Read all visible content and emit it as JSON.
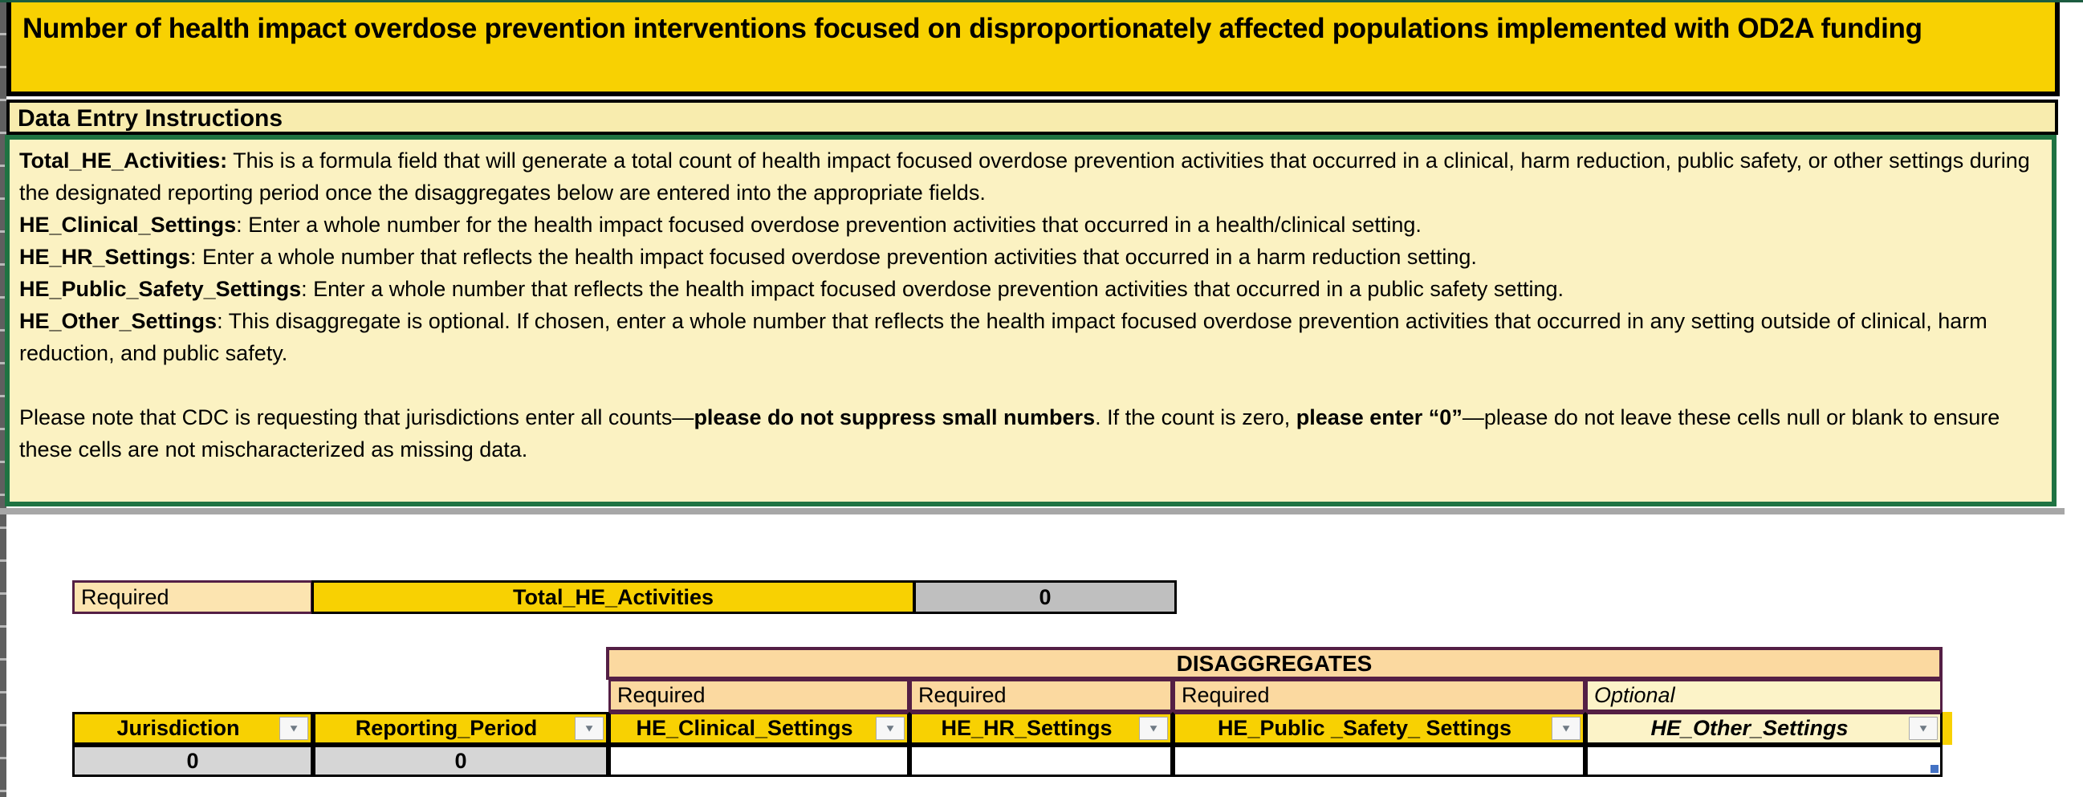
{
  "title": "Number of health impact overdose prevention interventions focused on disproportionately affected populations implemented with OD2A funding",
  "instructions": {
    "header": "Data Entry Instructions",
    "paragraphs": [
      {
        "segments": [
          {
            "t": "Total_HE_Activities:",
            "b": true
          },
          {
            "t": " This is a formula field that will generate a total count of health impact focused overdose prevention activities that occurred in a clinical, harm reduction, public safety, or other settings during the designated reporting period once the disaggregates below are entered into the appropriate fields.",
            "b": false
          }
        ]
      },
      {
        "segments": [
          {
            "t": "HE_Clinical_Settings",
            "b": true
          },
          {
            "t": ": Enter a whole number for the health impact focused overdose prevention activities that occurred in a health/clinical setting.",
            "b": false
          }
        ]
      },
      {
        "segments": [
          {
            "t": "HE_HR_Settings",
            "b": true
          },
          {
            "t": ": Enter a whole number that reflects the health impact focused overdose prevention activities that occurred in a harm reduction setting.",
            "b": false
          }
        ]
      },
      {
        "segments": [
          {
            "t": "HE_Public_Safety_Settings",
            "b": true
          },
          {
            "t": ": Enter a whole number that reflects the health impact focused overdose prevention activities that occurred in a public safety setting.",
            "b": false
          }
        ]
      },
      {
        "segments": [
          {
            "t": "HE_Other_Settings",
            "b": true
          },
          {
            "t": ": This disaggregate is optional. If chosen, enter a whole number that reflects the health impact focused overdose prevention activities that occurred in any setting outside of clinical, harm reduction, and public safety.",
            "b": false
          }
        ]
      },
      {
        "segments": [
          {
            "t": "",
            "b": false
          }
        ]
      },
      {
        "segments": [
          {
            "t": "Please note that CDC is requesting that jurisdictions enter all counts—",
            "b": false
          },
          {
            "t": "please do not suppress small numbers",
            "b": true
          },
          {
            "t": ". If the count is zero, ",
            "b": false
          },
          {
            "t": "please enter “0”",
            "b": true
          },
          {
            "t": "—please do not leave these cells null or blank to ensure these cells are not mischaracterized as missing data.",
            "b": false
          }
        ]
      }
    ]
  },
  "total_row": {
    "requirement": "Required",
    "label": "Total_HE_Activities",
    "value": "0"
  },
  "disaggregates": {
    "banner": "DISAGGREGATES",
    "requirements": [
      "Required",
      "Required",
      "Required",
      "Optional"
    ]
  },
  "table": {
    "columns": [
      {
        "label": "Jurisdiction",
        "filter_icon": "filter-dropdown-icon"
      },
      {
        "label": "Reporting_Period",
        "filter_icon": "filter-dropdown-icon"
      },
      {
        "label": "HE_Clinical_Settings",
        "filter_icon": "filter-dropdown-icon"
      },
      {
        "label": "HE_HR_Settings",
        "filter_icon": "filter-dropdown-icon"
      },
      {
        "label": "HE_Public _Safety_ Settings",
        "filter_icon": "filter-dropdown-icon"
      },
      {
        "label": "HE_Other_Settings",
        "filter_icon": "filter-dropdown-icon"
      }
    ],
    "row": [
      "0",
      "0",
      "",
      "",
      "",
      ""
    ]
  },
  "colors": {
    "gold": "#f8d102",
    "pale_yellow_header": "#f8ecae",
    "pale_yellow_box": "#fbf2c2",
    "pale_yellow_cell": "#fcf3c8",
    "peach": "#fbd9a0",
    "light_peach": "#fce4b0",
    "plum_border": "#541f45",
    "green_border": "#1f7342",
    "gray_value": "#bfbfbf",
    "gray_cell": "#d6d6d6",
    "marker_blue": "#4472c4"
  }
}
